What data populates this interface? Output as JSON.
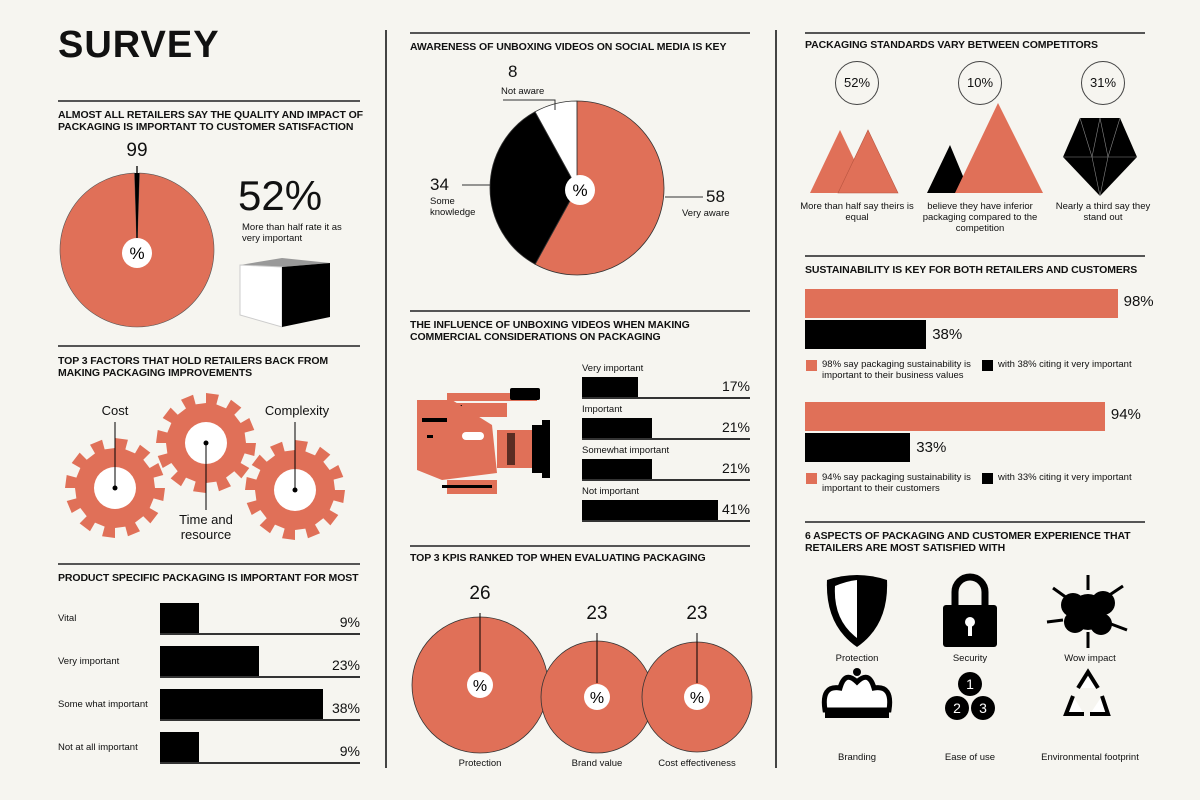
{
  "title": "SURVEY",
  "colors": {
    "accent": "#e07058",
    "dark": "#000000",
    "background": "#f6f5f0"
  },
  "s1": {
    "heading": "ALMOST ALL RETAILERS SAY THE QUALITY AND IMPACT OF PACKAGING IS IMPORTANT TO CUSTOMER SATISFACTION",
    "value": "99",
    "center": "%",
    "big": "52%",
    "caption": "More than half rate it as very important",
    "icon": "open-box-icon"
  },
  "s2": {
    "heading": "TOP 3 FACTORS THAT HOLD RETAILERS BACK FROM MAKING PACKAGING IMPROVEMENTS",
    "items": [
      "Cost",
      "Time and resource",
      "Complexity"
    ],
    "icon": "gear-icon"
  },
  "s3": {
    "heading": "PRODUCT SPECIFIC PACKAGING IS IMPORTANT FOR MOST",
    "rows": [
      {
        "label": "Vital",
        "pct": "9%"
      },
      {
        "label": "Very important",
        "pct": "23%"
      },
      {
        "label": "Some what important",
        "pct": "38%"
      },
      {
        "label": "Not at all important",
        "pct": "9%"
      }
    ]
  },
  "s4": {
    "heading": "AWARENESS OF UNBOXING VIDEOS ON SOCIAL MEDIA IS KEY",
    "center": "%",
    "slices": [
      {
        "value": "58",
        "label": "Very aware"
      },
      {
        "value": "34",
        "label": "Some knowledge"
      },
      {
        "value": "8",
        "label": "Not aware"
      }
    ]
  },
  "s5": {
    "heading": "THE INFLUENCE OF UNBOXING VIDEOS WHEN MAKING COMMERCIAL CONSIDERATIONS ON PACKAGING",
    "icon": "video-camera-icon",
    "rows": [
      {
        "label": "Very important",
        "pct": "17%"
      },
      {
        "label": "Important",
        "pct": "21%"
      },
      {
        "label": "Somewhat important",
        "pct": "21%"
      },
      {
        "label": "Not important",
        "pct": "41%"
      }
    ]
  },
  "s6": {
    "heading": "TOP 3 KPIS RANKED TOP WHEN EVALUATING PACKAGING",
    "center": "%",
    "items": [
      {
        "value": "26",
        "label": "Protection"
      },
      {
        "value": "23",
        "label": "Brand value"
      },
      {
        "value": "23",
        "label": "Cost effectiveness"
      }
    ]
  },
  "s7": {
    "heading": "PACKAGING STANDARDS VARY BETWEEN COMPETITORS",
    "items": [
      {
        "pct": "52%",
        "caption": "More than half say theirs is equal",
        "icon": "equal-mountains-icon"
      },
      {
        "pct": "10%",
        "caption": "believe they have inferior packaging compared to the competition",
        "icon": "unequal-mountains-icon"
      },
      {
        "pct": "31%",
        "caption": "Nearly a third say they stand out",
        "icon": "diamond-icon"
      }
    ]
  },
  "s8": {
    "heading": "SUSTAINABILITY IS KEY FOR BOTH RETAILERS AND CUSTOMERS",
    "groups": [
      {
        "main": "98%",
        "sub": "38%",
        "main_legend": "98% say packaging sustainability is important to their business values",
        "sub_legend": "with 38% citing it very important"
      },
      {
        "main": "94%",
        "sub": "33%",
        "main_legend": "94% say packaging sustainability is important to their customers",
        "sub_legend": "with 33% citing it very important"
      }
    ]
  },
  "s9": {
    "heading": "6 ASPECTS OF PACKAGING AND CUSTOMER EXPERIENCE THAT RETAILERS ARE MOST SATISFIED WITH",
    "items": [
      {
        "label": "Protection",
        "icon": "shield-icon"
      },
      {
        "label": "Security",
        "icon": "padlock-icon"
      },
      {
        "label": "Wow impact",
        "icon": "explosion-icon"
      },
      {
        "label": "Branding",
        "icon": "crown-icon"
      },
      {
        "label": "Ease of use",
        "icon": "numbered-circles-icon"
      },
      {
        "label": "Environmental footprint",
        "icon": "recycle-icon"
      }
    ]
  },
  "chart_data": [
    {
      "type": "pie",
      "title": "ALMOST ALL RETAILERS SAY THE QUALITY AND IMPACT OF PACKAGING IS IMPORTANT TO CUSTOMER SATISFACTION",
      "values": [
        99,
        1
      ],
      "unit": "%"
    },
    {
      "type": "bar",
      "orientation": "horizontal",
      "title": "PRODUCT SPECIFIC PACKAGING IS IMPORTANT FOR MOST",
      "categories": [
        "Vital",
        "Very important",
        "Some what important",
        "Not at all important"
      ],
      "values": [
        9,
        23,
        38,
        9
      ],
      "unit": "%"
    },
    {
      "type": "pie",
      "title": "AWARENESS OF UNBOXING VIDEOS ON SOCIAL MEDIA IS KEY",
      "categories": [
        "Very aware",
        "Some knowledge",
        "Not aware"
      ],
      "values": [
        58,
        34,
        8
      ],
      "colors": [
        "#e07058",
        "#000000",
        "#ffffff"
      ]
    },
    {
      "type": "bar",
      "orientation": "horizontal",
      "title": "THE INFLUENCE OF UNBOXING VIDEOS WHEN MAKING COMMERCIAL CONSIDERATIONS ON PACKAGING",
      "categories": [
        "Very important",
        "Important",
        "Somewhat important",
        "Not important"
      ],
      "values": [
        17,
        21,
        21,
        41
      ],
      "unit": "%"
    },
    {
      "type": "bubble",
      "title": "TOP 3 KPIS RANKED TOP WHEN EVALUATING PACKAGING",
      "categories": [
        "Protection",
        "Brand value",
        "Cost effectiveness"
      ],
      "values": [
        26,
        23,
        23
      ],
      "unit": "%"
    },
    {
      "type": "bar",
      "orientation": "horizontal",
      "title": "SUSTAINABILITY IS KEY FOR BOTH RETAILERS AND CUSTOMERS",
      "categories": [
        "Business values",
        "Customers"
      ],
      "series": [
        {
          "values": [
            98,
            94
          ]
        },
        {
          "values": [
            38,
            33
          ]
        }
      ],
      "unit": "%"
    }
  ]
}
